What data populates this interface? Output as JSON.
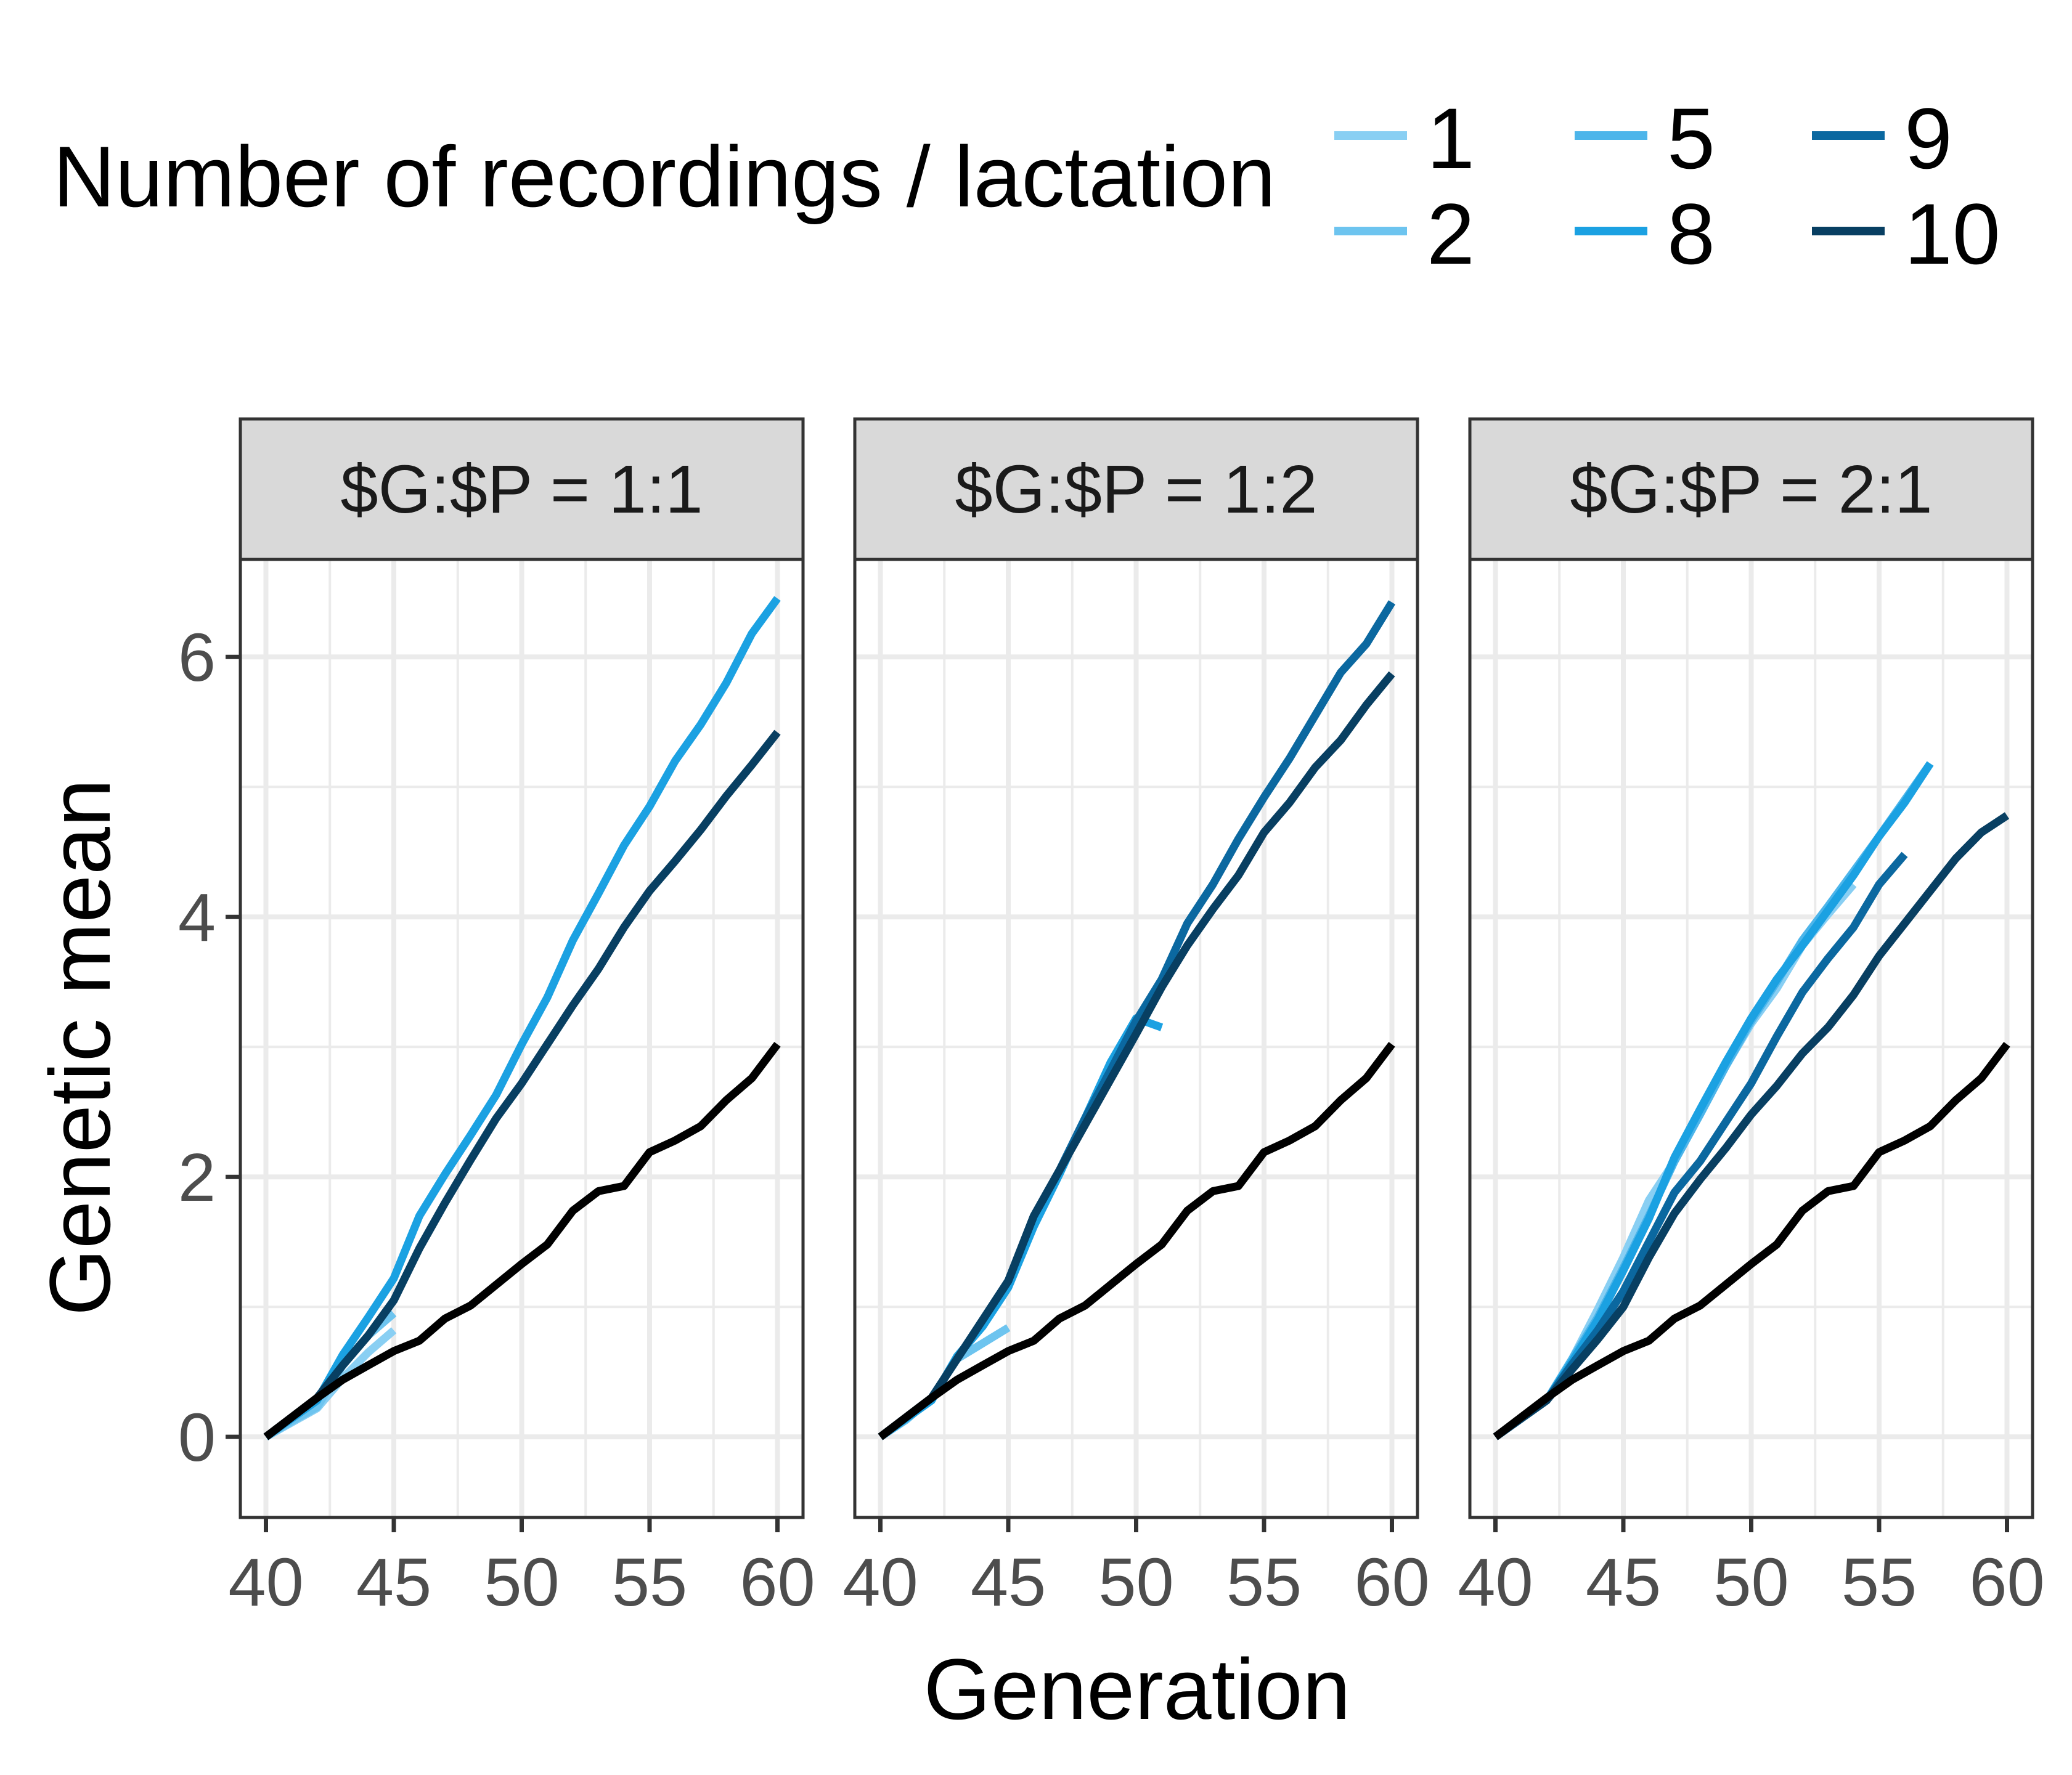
{
  "chart_data": {
    "type": "line",
    "ylabel": "Genetic mean",
    "xlabel": "Generation",
    "legend": {
      "title": "Number of recordings / lactation",
      "placement": "top",
      "entries": [
        {
          "label": "1",
          "color": "#89cff3"
        },
        {
          "label": "2",
          "color": "#6dc4ef"
        },
        {
          "label": "5",
          "color": "#4db5ea"
        },
        {
          "label": "8",
          "color": "#1ba1e2"
        },
        {
          "label": "9",
          "color": "#0b68a0"
        },
        {
          "label": "10",
          "color": "#083f62"
        }
      ]
    },
    "xlim": [
      39,
      61
    ],
    "ylim": [
      -0.62,
      6.75
    ],
    "x_ticks": [
      40,
      45,
      50,
      55,
      60
    ],
    "y_ticks": [
      0,
      2,
      4,
      6
    ],
    "grid": true,
    "panels": [
      {
        "strip": "$G:$P = 1:1",
        "series": [
          {
            "name": "1",
            "color": "#89cff3",
            "x": [
              40,
              41,
              42,
              43,
              44,
              45
            ],
            "y": [
              0,
              0.11,
              0.22,
              0.45,
              0.65,
              0.82
            ]
          },
          {
            "name": "2",
            "color": "#6dc4ef",
            "x": [
              40,
              41,
              42,
              43,
              44,
              45
            ],
            "y": [
              0,
              0.12,
              0.23,
              0.55,
              0.78,
              0.95
            ]
          },
          {
            "name": "8",
            "color": "#1ba1e2",
            "x": [
              40,
              41,
              42,
              43,
              44,
              45,
              46,
              47,
              48,
              49,
              50,
              51,
              52,
              53,
              54,
              55,
              56,
              57,
              58,
              59,
              60
            ],
            "y": [
              0,
              0.14,
              0.28,
              0.63,
              0.92,
              1.22,
              1.7,
              2.02,
              2.32,
              2.63,
              3.02,
              3.38,
              3.82,
              4.18,
              4.55,
              4.85,
              5.2,
              5.48,
              5.8,
              6.18,
              6.45
            ]
          },
          {
            "name": "10",
            "color": "#083f62",
            "x": [
              40,
              41,
              42,
              43,
              44,
              45,
              46,
              47,
              48,
              49,
              50,
              51,
              52,
              53,
              54,
              55,
              56,
              57,
              58,
              59,
              60
            ],
            "y": [
              0,
              0.15,
              0.3,
              0.55,
              0.78,
              1.05,
              1.45,
              1.8,
              2.13,
              2.45,
              2.72,
              3.02,
              3.32,
              3.6,
              3.92,
              4.2,
              4.43,
              4.67,
              4.93,
              5.17,
              5.42
            ]
          },
          {
            "name": "",
            "color": "#000000",
            "x": [
              40,
              41,
              42,
              43,
              44,
              45,
              46,
              47,
              48,
              49,
              50,
              51,
              52,
              53,
              54,
              55,
              56,
              57,
              58,
              59,
              60
            ],
            "y": [
              0,
              0.15,
              0.3,
              0.44,
              0.55,
              0.66,
              0.74,
              0.91,
              1.01,
              1.17,
              1.33,
              1.48,
              1.74,
              1.89,
              1.93,
              2.19,
              2.28,
              2.39,
              2.59,
              2.76,
              3.02
            ]
          }
        ]
      },
      {
        "strip": "$G:$P = 1:2",
        "series": [
          {
            "name": "2",
            "color": "#6dc4ef",
            "x": [
              40,
              41,
              42,
              43,
              44,
              45
            ],
            "y": [
              0,
              0.13,
              0.3,
              0.6,
              0.72,
              0.84
            ]
          },
          {
            "name": "8",
            "color": "#1ba1e2",
            "x": [
              40,
              41,
              42,
              43,
              44,
              45,
              46,
              47,
              48,
              49,
              50,
              51
            ],
            "y": [
              0,
              0.14,
              0.28,
              0.62,
              0.85,
              1.15,
              1.62,
              2.02,
              2.45,
              2.88,
              3.22,
              3.15
            ]
          },
          {
            "name": "9",
            "color": "#0b68a0",
            "x": [
              40,
              41,
              42,
              43,
              44,
              45,
              46,
              47,
              48,
              49,
              50,
              51,
              52,
              53,
              54,
              55,
              56,
              57,
              58,
              59,
              60
            ],
            "y": [
              0,
              0.15,
              0.3,
              0.6,
              0.9,
              1.2,
              1.7,
              2.05,
              2.45,
              2.82,
              3.2,
              3.52,
              3.95,
              4.25,
              4.6,
              4.92,
              5.22,
              5.55,
              5.88,
              6.1,
              6.42
            ]
          },
          {
            "name": "10",
            "color": "#083f62",
            "x": [
              40,
              41,
              42,
              43,
              44,
              45,
              46,
              47,
              48,
              49,
              50,
              51,
              52,
              53,
              54,
              55,
              56,
              57,
              58,
              59,
              60
            ],
            "y": [
              0,
              0.15,
              0.3,
              0.6,
              0.9,
              1.2,
              1.7,
              2.05,
              2.4,
              2.75,
              3.1,
              3.46,
              3.78,
              4.06,
              4.32,
              4.65,
              4.88,
              5.15,
              5.36,
              5.63,
              5.87
            ]
          },
          {
            "name": "",
            "color": "#000000",
            "x": [
              40,
              41,
              42,
              43,
              44,
              45,
              46,
              47,
              48,
              49,
              50,
              51,
              52,
              53,
              54,
              55,
              56,
              57,
              58,
              59,
              60
            ],
            "y": [
              0,
              0.15,
              0.3,
              0.44,
              0.55,
              0.66,
              0.74,
              0.91,
              1.01,
              1.17,
              1.33,
              1.48,
              1.74,
              1.89,
              1.93,
              2.19,
              2.28,
              2.39,
              2.59,
              2.76,
              3.02
            ]
          }
        ]
      },
      {
        "strip": "$G:$P = 2:1",
        "series": [
          {
            "name": "1",
            "color": "#89cff3",
            "x": [
              40,
              41,
              42,
              43,
              44,
              45,
              46,
              47,
              48,
              49,
              50,
              51,
              52,
              53,
              54
            ],
            "y": [
              0,
              0.14,
              0.28,
              0.6,
              0.98,
              1.38,
              1.82,
              2.12,
              2.48,
              2.85,
              3.18,
              3.45,
              3.78,
              4.02,
              4.25
            ]
          },
          {
            "name": "5",
            "color": "#4db5ea",
            "x": [
              40,
              41,
              42,
              43,
              44,
              45,
              46,
              47,
              48,
              49,
              50,
              51,
              52,
              53,
              54,
              55,
              56,
              57
            ],
            "y": [
              0,
              0.14,
              0.28,
              0.6,
              0.92,
              1.3,
              1.7,
              2.12,
              2.48,
              2.85,
              3.2,
              3.5,
              3.82,
              4.08,
              4.35,
              4.62,
              4.9,
              5.18
            ]
          },
          {
            "name": "8",
            "color": "#1ba1e2",
            "x": [
              40,
              41,
              42,
              43,
              44,
              45,
              46,
              47,
              48,
              49,
              50,
              51,
              52,
              53,
              54,
              55,
              56,
              57
            ],
            "y": [
              0,
              0.14,
              0.28,
              0.58,
              0.9,
              1.28,
              1.68,
              2.15,
              2.52,
              2.88,
              3.22,
              3.52,
              3.78,
              4.05,
              4.32,
              4.62,
              4.88,
              5.18
            ]
          },
          {
            "name": "9",
            "color": "#0b68a0",
            "x": [
              40,
              41,
              42,
              43,
              44,
              45,
              46,
              47,
              48,
              49,
              50,
              51,
              52,
              53,
              54,
              55,
              56
            ],
            "y": [
              0,
              0.14,
              0.28,
              0.56,
              0.82,
              1.12,
              1.5,
              1.88,
              2.12,
              2.42,
              2.72,
              3.08,
              3.42,
              3.68,
              3.92,
              4.25,
              4.48
            ]
          },
          {
            "name": "10",
            "color": "#083f62",
            "x": [
              40,
              41,
              42,
              43,
              44,
              45,
              46,
              47,
              48,
              49,
              50,
              51,
              52,
              53,
              54,
              55,
              56,
              57,
              58,
              59,
              60
            ],
            "y": [
              0,
              0.14,
              0.28,
              0.52,
              0.75,
              1.0,
              1.38,
              1.72,
              1.98,
              2.22,
              2.48,
              2.7,
              2.95,
              3.15,
              3.4,
              3.7,
              3.95,
              4.2,
              4.45,
              4.65,
              4.78
            ]
          },
          {
            "name": "",
            "color": "#000000",
            "x": [
              40,
              41,
              42,
              43,
              44,
              45,
              46,
              47,
              48,
              49,
              50,
              51,
              52,
              53,
              54,
              55,
              56,
              57,
              58,
              59,
              60
            ],
            "y": [
              0,
              0.15,
              0.3,
              0.44,
              0.55,
              0.66,
              0.74,
              0.91,
              1.01,
              1.17,
              1.33,
              1.48,
              1.74,
              1.89,
              1.93,
              2.19,
              2.28,
              2.39,
              2.59,
              2.76,
              3.02
            ]
          }
        ]
      }
    ]
  }
}
